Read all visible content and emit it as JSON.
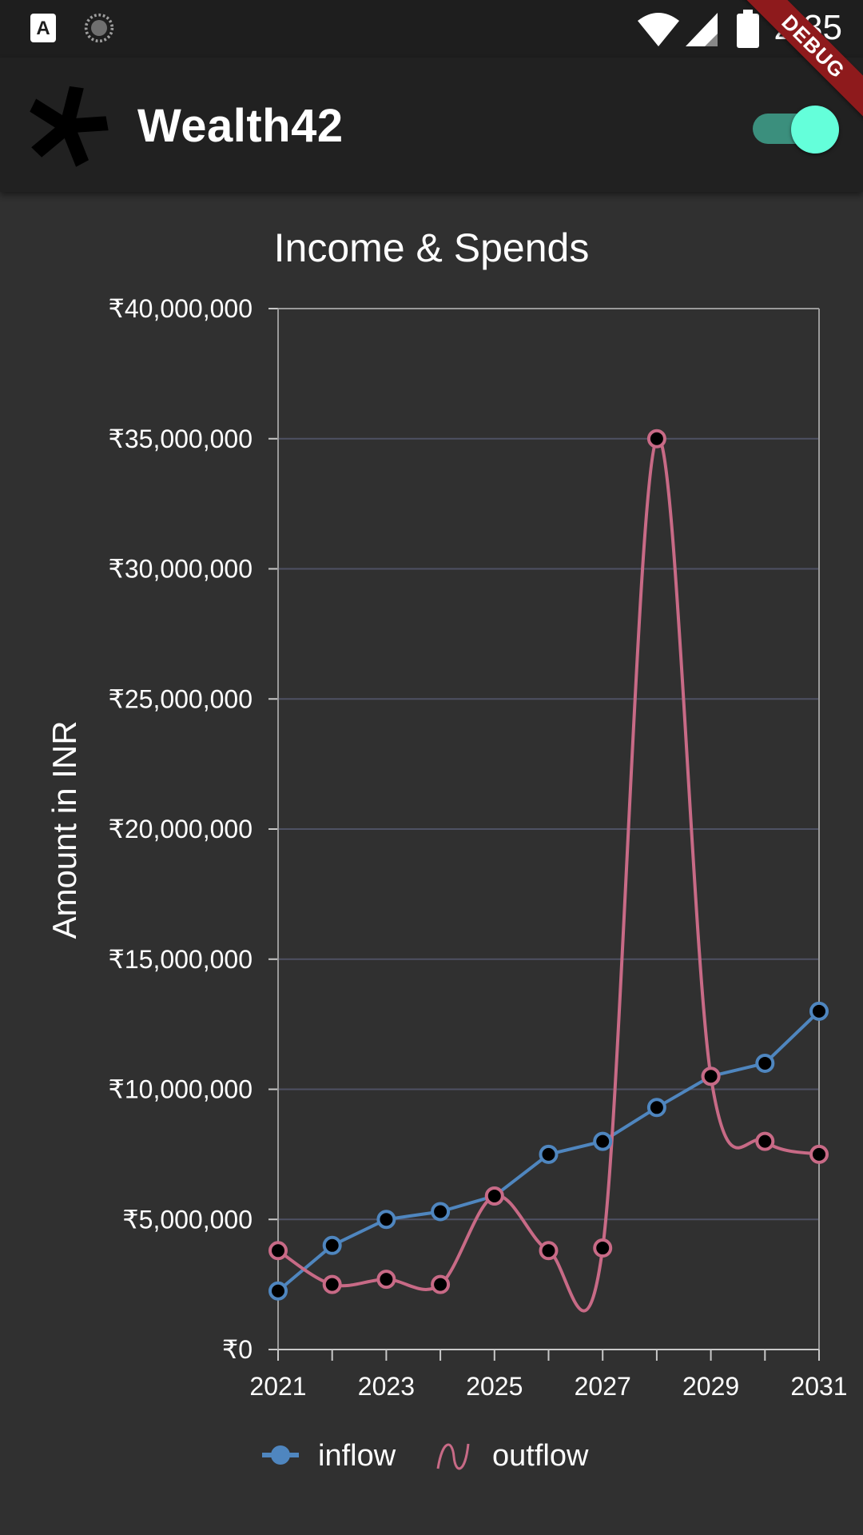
{
  "status_bar": {
    "time": "2:35",
    "icons": [
      "app-a-icon",
      "sync-icon",
      "wifi-icon",
      "cellular-icon",
      "battery-icon"
    ]
  },
  "app_bar": {
    "title": "Wealth42",
    "logo": "star-logo",
    "theme_toggle": {
      "on": true
    },
    "debug_banner": "DEBUG"
  },
  "colors": {
    "background": "#303030",
    "appbar": "#212121",
    "inflow": "#4f86bf",
    "outflow": "#c86a86",
    "accent": "#64ffda",
    "grid": "#4e5163"
  },
  "chart_data": {
    "type": "line",
    "title": "Income & Spends",
    "ylabel": "Amount in INR",
    "xlabel": "",
    "x": [
      2021,
      2022,
      2023,
      2024,
      2025,
      2026,
      2027,
      2028,
      2029,
      2030,
      2031
    ],
    "x_tick_labels": [
      "2021",
      "2023",
      "2025",
      "2027",
      "2029",
      "2031"
    ],
    "y_tick_values": [
      0,
      5000000,
      10000000,
      15000000,
      20000000,
      25000000,
      30000000,
      35000000,
      40000000
    ],
    "y_tick_labels": [
      "₹0",
      "₹5,000,000",
      "₹10,000,000",
      "₹15,000,000",
      "₹20,000,000",
      "₹25,000,000",
      "₹30,000,000",
      "₹35,000,000",
      "₹40,000,000"
    ],
    "xlim": [
      2021,
      2031
    ],
    "ylim": [
      0,
      40000000
    ],
    "grid": true,
    "legend_position": "bottom",
    "series": [
      {
        "name": "inflow",
        "style": "straight",
        "values": [
          2250000,
          4000000,
          5000000,
          5300000,
          5900000,
          7500000,
          8000000,
          9300000,
          10500000,
          11000000,
          13000000
        ]
      },
      {
        "name": "outflow",
        "style": "smooth",
        "values": [
          3800000,
          2500000,
          2700000,
          2500000,
          5900000,
          3800000,
          3900000,
          35000000,
          10500000,
          8000000,
          7500000
        ]
      }
    ]
  }
}
